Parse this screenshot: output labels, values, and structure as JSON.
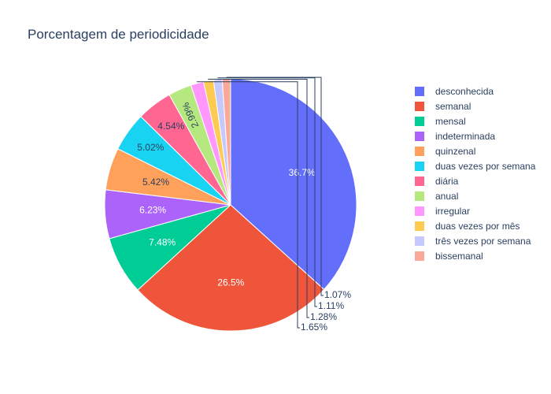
{
  "chart_data": {
    "type": "pie",
    "title": "Porcentagem de periodicidade",
    "slices": [
      {
        "label": "desconhecida",
        "value": 36.7,
        "text": "36.7%",
        "color": "#636efa"
      },
      {
        "label": "semanal",
        "value": 26.5,
        "text": "26.5%",
        "color": "#ef553b"
      },
      {
        "label": "mensal",
        "value": 7.48,
        "text": "7.48%",
        "color": "#00cc96"
      },
      {
        "label": "indeterminada",
        "value": 6.23,
        "text": "6.23%",
        "color": "#ab63fa"
      },
      {
        "label": "quinzenal",
        "value": 5.42,
        "text": "5.42%",
        "color": "#ffa15a"
      },
      {
        "label": "duas vezes por semana",
        "value": 5.02,
        "text": "5.02%",
        "color": "#19d3f3"
      },
      {
        "label": "diária",
        "value": 4.54,
        "text": "4.54%",
        "color": "#ff6692"
      },
      {
        "label": "anual",
        "value": 2.99,
        "text": "2.99%",
        "color": "#b6e880"
      },
      {
        "label": "irregular",
        "value": 1.65,
        "text": "1.65%",
        "color": "#ff97ff"
      },
      {
        "label": "duas vezes por mês",
        "value": 1.28,
        "text": "1.28%",
        "color": "#fecb52"
      },
      {
        "label": "três vezes por semana",
        "value": 1.11,
        "text": "1.11%",
        "color": "#c6c9fd"
      },
      {
        "label": "bissemanal",
        "value": 1.07,
        "text": "1.07%",
        "color": "#f8a99a"
      }
    ],
    "legend_position": "right",
    "sort": "descending",
    "direction": "clockwise",
    "start": "top"
  }
}
